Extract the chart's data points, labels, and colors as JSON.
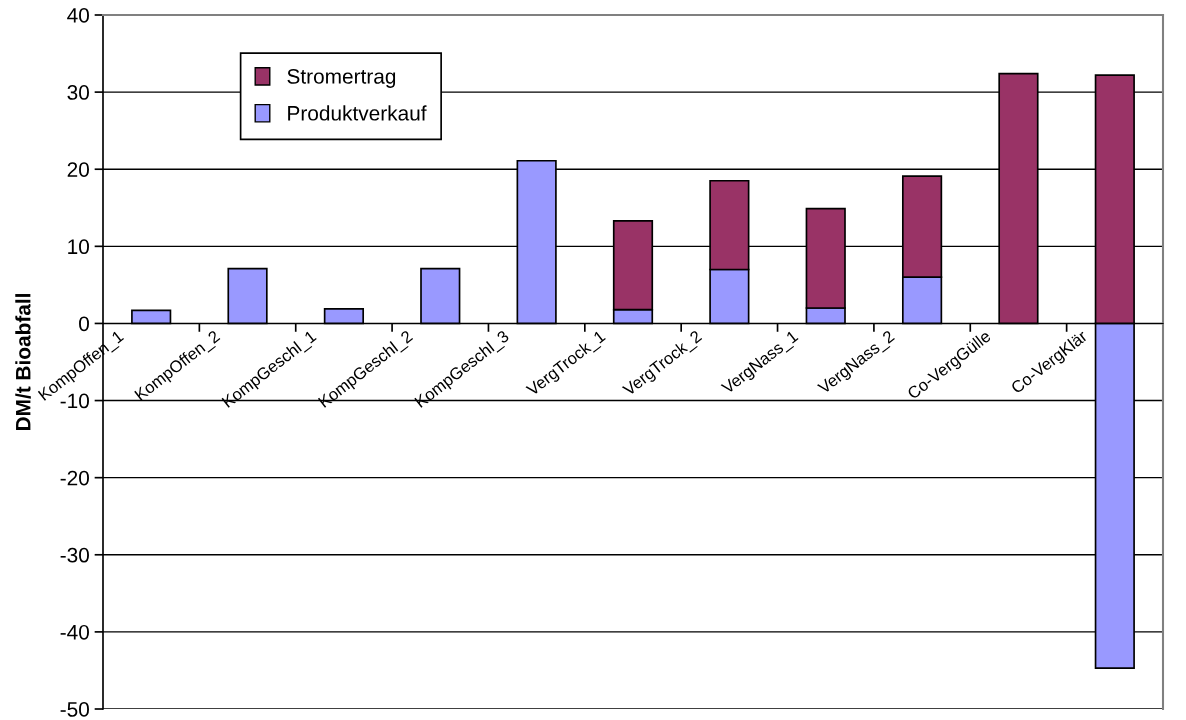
{
  "chart_data": {
    "type": "bar",
    "stacked": true,
    "ylabel": "DM/t Bioabfall",
    "categories": [
      "KompOffen_1",
      "KompOffen_2",
      "KompGeschl_1",
      "KompGeschl_2",
      "KompGeschl_3",
      "VergTrock_1",
      "VergTrock_2",
      "VergNass_1",
      "VergNass_2",
      "Co-VergGülle",
      "Co-VergKlär"
    ],
    "series": [
      {
        "name": "Produktverkauf",
        "color": "#9999ff",
        "values": [
          1.7,
          7.1,
          1.9,
          7.1,
          21.1,
          1.8,
          7.0,
          2.0,
          6.0,
          null,
          -44.7
        ]
      },
      {
        "name": "Stromertrag",
        "color": "#993366",
        "values": [
          null,
          null,
          null,
          null,
          null,
          11.5,
          11.5,
          12.9,
          13.1,
          32.4,
          32.2
        ]
      }
    ],
    "ylim": [
      -50,
      40
    ],
    "yticks": [
      -50,
      -40,
      -30,
      -20,
      -10,
      0,
      10,
      20,
      30,
      40
    ],
    "grid": "y",
    "legend": "top left"
  }
}
